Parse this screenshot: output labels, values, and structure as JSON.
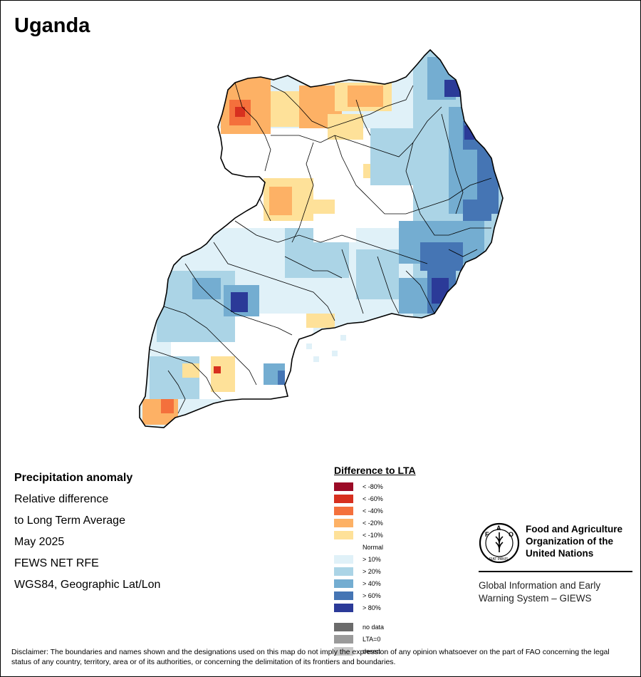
{
  "title": "Uganda",
  "info": {
    "line1": "Precipitation anomaly",
    "line2": "Relative difference",
    "line3": "to Long Term Average",
    "line4": "May 2025",
    "line5": "FEWS NET RFE",
    "line6": "WGS84, Geographic Lat/Lon"
  },
  "legend": {
    "title": "Difference to LTA",
    "items": [
      {
        "label": "< -80%",
        "color": "#9b0a26"
      },
      {
        "label": "< -60%",
        "color": "#d7301f"
      },
      {
        "label": "< -40%",
        "color": "#f4703c"
      },
      {
        "label": "< -20%",
        "color": "#fdb165"
      },
      {
        "label": "< -10%",
        "color": "#fee199"
      },
      {
        "label": "Normal",
        "color": "#ffffff"
      },
      {
        "label": "> 10%",
        "color": "#e0f1f8"
      },
      {
        "label": "> 20%",
        "color": "#abd4e6"
      },
      {
        "label": "> 40%",
        "color": "#74add1"
      },
      {
        "label": "> 60%",
        "color": "#4575b4"
      },
      {
        "label": "> 80%",
        "color": "#2b3a98"
      }
    ],
    "extra": [
      {
        "label": "no data",
        "color": "#6b6b6b"
      },
      {
        "label": "LTA=0",
        "color": "#9a9a9a"
      },
      {
        "label": "desert",
        "color": "#c8c8c8"
      }
    ]
  },
  "logo": {
    "letters": [
      "F",
      "A",
      "O"
    ],
    "motto": "FIAT PANIS",
    "org_name_1": "Food and Agriculture",
    "org_name_2": "Organization of the",
    "org_name_3": "United Nations",
    "system_1": "Global Information and Early",
    "system_2": "Warning System – GIEWS"
  },
  "disclaimer": "Disclaimer: The boundaries and names shown and the designations used on this map do not imply the expression of any opinion whatsoever on the part of FAO concerning the legal status of any country, territory, area or of its authorities, or concerning the delimitation of its frontiers and boundaries."
}
